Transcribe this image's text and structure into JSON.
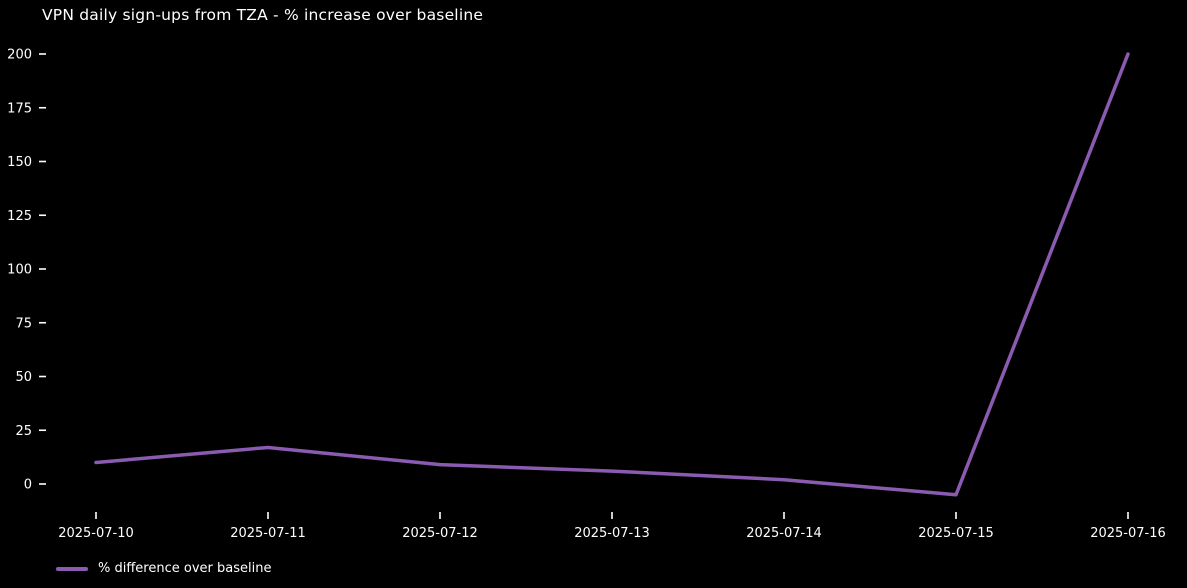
{
  "header": {
    "title": "VPN daily sign-ups from TZA - % increase over baseline"
  },
  "chart_data": {
    "type": "line",
    "title": "VPN daily sign-ups from TZA - % increase over baseline",
    "xlabel": "",
    "ylabel": "",
    "categories": [
      "2025-07-10",
      "2025-07-11",
      "2025-07-12",
      "2025-07-13",
      "2025-07-14",
      "2025-07-15",
      "2025-07-16"
    ],
    "series": [
      {
        "name": "% difference over baseline",
        "values": [
          10,
          17,
          9,
          6,
          2,
          -5,
          200
        ],
        "color": "#8a5bb0"
      }
    ],
    "yticks": [
      0,
      25,
      50,
      75,
      100,
      125,
      150,
      175,
      200
    ],
    "ylim": [
      -15,
      210
    ],
    "grid": false,
    "legend_position": "lower-left",
    "background_color": "#000000",
    "text_color": "#ffffff"
  },
  "legend": {
    "label": "% difference over baseline"
  }
}
